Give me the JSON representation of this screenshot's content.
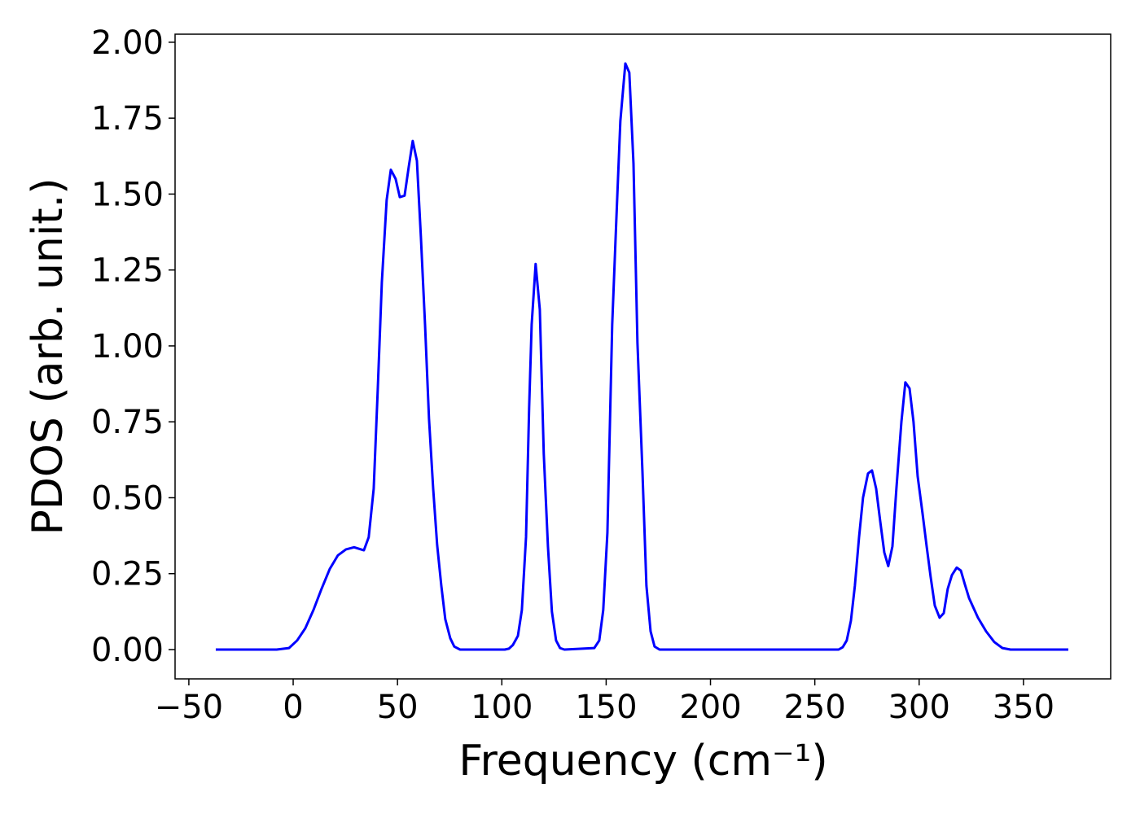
{
  "chart_data": {
    "type": "line",
    "xlabel": "Frequency (cm⁻¹)",
    "ylabel": "PDOS (arb. unit.)",
    "x": [
      -37.1,
      -20,
      -7.9,
      -2,
      1.9,
      5.8,
      9.7,
      13.6,
      17.5,
      21.4,
      25.3,
      29.2,
      33.9,
      36.2,
      38.6,
      40.5,
      42.5,
      44.8,
      46.8,
      49.1,
      51.1,
      53.4,
      55.4,
      57.3,
      59.3,
      61.2,
      63.2,
      65.1,
      67.1,
      69.0,
      71.0,
      72.9,
      75.3,
      77.2,
      80,
      101.4,
      103.4,
      105.3,
      107.7,
      109.6,
      111.6,
      113.1,
      114.3,
      116.2,
      118.2,
      120.1,
      122.1,
      124.0,
      126.0,
      127.9,
      130,
      144.3,
      146.7,
      148.6,
      150.6,
      152.9,
      154.9,
      156.8,
      159.2,
      161.1,
      163.1,
      165.0,
      167.4,
      169.3,
      171.3,
      173.2,
      175.6,
      261.4,
      263.4,
      265.3,
      267.3,
      269.2,
      271.2,
      273.1,
      275.5,
      277.4,
      279.4,
      281.3,
      283.3,
      285.2,
      287.2,
      289.1,
      291.5,
      293.4,
      295.4,
      297.3,
      299.3,
      301.6,
      303.6,
      305.5,
      307.5,
      309.8,
      311.8,
      313.7,
      315.7,
      318,
      320,
      321.9,
      323.9,
      326.2,
      328.2,
      332.1,
      336,
      339.9,
      343.8,
      371.5
    ],
    "series": [
      {
        "name": "PDOS",
        "color": "#0000ff",
        "values": [
          0,
          0,
          0,
          0.005,
          0.03,
          0.07,
          0.13,
          0.2,
          0.265,
          0.31,
          0.33,
          0.337,
          0.327,
          0.37,
          0.53,
          0.85,
          1.21,
          1.48,
          1.58,
          1.55,
          1.49,
          1.495,
          1.59,
          1.675,
          1.61,
          1.36,
          1.07,
          0.76,
          0.53,
          0.345,
          0.21,
          0.1,
          0.037,
          0.01,
          0,
          0,
          0.003,
          0.015,
          0.045,
          0.13,
          0.37,
          0.8,
          1.07,
          1.27,
          1.12,
          0.645,
          0.34,
          0.125,
          0.03,
          0.005,
          0,
          0.005,
          0.03,
          0.13,
          0.385,
          1.07,
          1.42,
          1.74,
          1.93,
          1.9,
          1.6,
          1.01,
          0.585,
          0.21,
          0.06,
          0.01,
          0,
          0,
          0.008,
          0.03,
          0.095,
          0.21,
          0.37,
          0.5,
          0.58,
          0.59,
          0.53,
          0.425,
          0.32,
          0.275,
          0.34,
          0.53,
          0.75,
          0.88,
          0.86,
          0.75,
          0.57,
          0.45,
          0.34,
          0.24,
          0.145,
          0.105,
          0.12,
          0.2,
          0.245,
          0.27,
          0.26,
          0.215,
          0.17,
          0.135,
          0.105,
          0.06,
          0.025,
          0.005,
          0,
          0
        ]
      }
    ],
    "xlim": [
      -56.6,
      391.8
    ],
    "xticks": [
      {
        "value": -50,
        "label": "−50"
      },
      0,
      50,
      100,
      150,
      200,
      250,
      300,
      350
    ],
    "ylim": [
      -0.0965,
      2.0265
    ],
    "yticks": [
      {
        "value": 0,
        "label": "0.00"
      },
      {
        "value": 0.25,
        "label": "0.25"
      },
      {
        "value": 0.5,
        "label": "0.50"
      },
      {
        "value": 0.75,
        "label": "0.75"
      },
      {
        "value": 1,
        "label": "1.00"
      },
      {
        "value": 1.25,
        "label": "1.25"
      },
      {
        "value": 1.5,
        "label": "1.50"
      },
      {
        "value": 1.75,
        "label": "1.75"
      },
      {
        "value": 2,
        "label": "2.00"
      }
    ],
    "grid": false
  }
}
